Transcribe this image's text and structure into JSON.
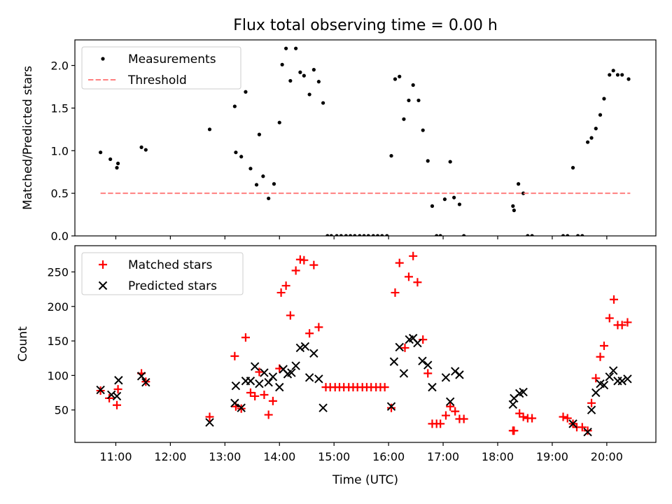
{
  "figure": {
    "title": "Flux total observing time = 0.00 h"
  },
  "chart_data": [
    {
      "type": "scatter",
      "id": "ratio",
      "title": "Flux total observing time = 0.00 h",
      "xlabel": "",
      "ylabel": "Matched/Predicted stars",
      "xlim": [
        10.25,
        20.9
      ],
      "ylim": [
        0.0,
        2.3
      ],
      "yticks": [
        0.0,
        0.5,
        1.0,
        1.5,
        2.0
      ],
      "ytick_labels": [
        "0.0",
        "0.5",
        "1.0",
        "1.5",
        "2.0"
      ],
      "legend_position": "top-left",
      "series": [
        {
          "name": "Measurements",
          "marker": "dot",
          "color": "#000000",
          "points": [
            [
              10.72,
              0.98
            ],
            [
              10.9,
              0.9
            ],
            [
              11.02,
              0.8
            ],
            [
              11.04,
              0.85
            ],
            [
              11.47,
              1.04
            ],
            [
              11.55,
              1.01
            ],
            [
              12.72,
              1.25
            ],
            [
              13.18,
              1.52
            ],
            [
              13.2,
              0.98
            ],
            [
              13.3,
              0.93
            ],
            [
              13.38,
              1.69
            ],
            [
              13.47,
              0.79
            ],
            [
              13.58,
              0.6
            ],
            [
              13.63,
              1.19
            ],
            [
              13.7,
              0.7
            ],
            [
              13.8,
              0.44
            ],
            [
              13.9,
              0.61
            ],
            [
              14.0,
              1.33
            ],
            [
              14.05,
              2.01
            ],
            [
              14.12,
              2.2
            ],
            [
              14.2,
              1.82
            ],
            [
              14.3,
              2.2
            ],
            [
              14.38,
              1.92
            ],
            [
              14.45,
              1.88
            ],
            [
              14.55,
              1.66
            ],
            [
              14.63,
              1.95
            ],
            [
              14.72,
              1.81
            ],
            [
              14.8,
              1.56
            ],
            [
              14.88,
              0.0
            ],
            [
              14.95,
              0.0
            ],
            [
              15.05,
              0.0
            ],
            [
              15.13,
              0.0
            ],
            [
              15.22,
              0.0
            ],
            [
              15.3,
              0.0
            ],
            [
              15.38,
              0.0
            ],
            [
              15.47,
              0.0
            ],
            [
              15.55,
              0.0
            ],
            [
              15.63,
              0.0
            ],
            [
              15.72,
              0.0
            ],
            [
              15.8,
              0.0
            ],
            [
              15.88,
              0.0
            ],
            [
              15.97,
              0.0
            ],
            [
              16.05,
              0.94
            ],
            [
              16.12,
              1.84
            ],
            [
              16.2,
              1.87
            ],
            [
              16.28,
              1.37
            ],
            [
              16.37,
              1.59
            ],
            [
              16.45,
              1.77
            ],
            [
              16.55,
              1.59
            ],
            [
              16.63,
              1.24
            ],
            [
              16.72,
              0.88
            ],
            [
              16.8,
              0.35
            ],
            [
              16.88,
              0.0
            ],
            [
              16.95,
              0.0
            ],
            [
              17.03,
              0.43
            ],
            [
              17.13,
              0.87
            ],
            [
              17.2,
              0.45
            ],
            [
              17.3,
              0.37
            ],
            [
              17.38,
              0.0
            ],
            [
              18.28,
              0.35
            ],
            [
              18.3,
              0.3
            ],
            [
              18.38,
              0.61
            ],
            [
              18.47,
              0.5
            ],
            [
              18.55,
              0.0
            ],
            [
              18.63,
              0.0
            ],
            [
              19.2,
              0.0
            ],
            [
              19.28,
              0.0
            ],
            [
              19.38,
              0.8
            ],
            [
              19.47,
              0.0
            ],
            [
              19.55,
              0.0
            ],
            [
              19.65,
              1.1
            ],
            [
              19.72,
              1.15
            ],
            [
              19.8,
              1.26
            ],
            [
              19.88,
              1.42
            ],
            [
              19.95,
              1.61
            ],
            [
              20.05,
              1.89
            ],
            [
              20.12,
              1.94
            ],
            [
              20.2,
              1.89
            ],
            [
              20.28,
              1.89
            ],
            [
              20.4,
              1.84
            ]
          ]
        },
        {
          "name": "Threshold",
          "marker": "dashed-line",
          "color": "#ff7f7f",
          "points": [
            [
              10.72,
              0.5
            ],
            [
              20.43,
              0.5
            ]
          ]
        }
      ]
    },
    {
      "type": "scatter",
      "id": "counts",
      "title": "",
      "xlabel": "Time (UTC)",
      "ylabel": "Count",
      "xlim": [
        10.25,
        20.9
      ],
      "ylim": [
        3,
        288
      ],
      "yticks": [
        50,
        100,
        150,
        200,
        250
      ],
      "ytick_labels": [
        "50",
        "100",
        "150",
        "200",
        "250"
      ],
      "xticks": [
        11,
        12,
        13,
        14,
        15,
        16,
        17,
        18,
        19,
        20
      ],
      "xtick_labels": [
        "11:00",
        "12:00",
        "13:00",
        "14:00",
        "15:00",
        "16:00",
        "17:00",
        "18:00",
        "19:00",
        "20:00"
      ],
      "legend_position": "top-left",
      "series": [
        {
          "name": "Matched stars",
          "marker": "plus",
          "color": "#ff0000",
          "points": [
            [
              10.72,
              78
            ],
            [
              10.88,
              67
            ],
            [
              11.02,
              57
            ],
            [
              11.04,
              80
            ],
            [
              11.47,
              103
            ],
            [
              11.55,
              91
            ],
            [
              12.72,
              40
            ],
            [
              13.18,
              128
            ],
            [
              13.2,
              55
            ],
            [
              13.3,
              52
            ],
            [
              13.38,
              155
            ],
            [
              13.47,
              75
            ],
            [
              13.55,
              70
            ],
            [
              13.63,
              105
            ],
            [
              13.72,
              72
            ],
            [
              13.8,
              43
            ],
            [
              13.88,
              63
            ],
            [
              14.0,
              110
            ],
            [
              14.03,
              220
            ],
            [
              14.12,
              230
            ],
            [
              14.2,
              187
            ],
            [
              14.3,
              252
            ],
            [
              14.38,
              268
            ],
            [
              14.45,
              267
            ],
            [
              14.55,
              161
            ],
            [
              14.63,
              260
            ],
            [
              14.72,
              170
            ],
            [
              14.85,
              83
            ],
            [
              14.93,
              83
            ],
            [
              15.02,
              83
            ],
            [
              15.1,
              83
            ],
            [
              15.18,
              83
            ],
            [
              15.27,
              83
            ],
            [
              15.35,
              83
            ],
            [
              15.43,
              83
            ],
            [
              15.52,
              83
            ],
            [
              15.6,
              83
            ],
            [
              15.68,
              83
            ],
            [
              15.77,
              83
            ],
            [
              15.85,
              83
            ],
            [
              15.93,
              83
            ],
            [
              16.05,
              53
            ],
            [
              16.12,
              220
            ],
            [
              16.2,
              263
            ],
            [
              16.3,
              140
            ],
            [
              16.37,
              243
            ],
            [
              16.45,
              273
            ],
            [
              16.53,
              235
            ],
            [
              16.63,
              152
            ],
            [
              16.72,
              103
            ],
            [
              16.8,
              30
            ],
            [
              16.88,
              30
            ],
            [
              16.95,
              30
            ],
            [
              17.05,
              42
            ],
            [
              17.13,
              55
            ],
            [
              17.22,
              48
            ],
            [
              17.3,
              37
            ],
            [
              17.38,
              37
            ],
            [
              18.28,
              20
            ],
            [
              18.3,
              20
            ],
            [
              18.4,
              45
            ],
            [
              18.47,
              40
            ],
            [
              18.55,
              38
            ],
            [
              18.63,
              38
            ],
            [
              19.2,
              40
            ],
            [
              19.28,
              38
            ],
            [
              19.38,
              30
            ],
            [
              19.45,
              25
            ],
            [
              19.55,
              25
            ],
            [
              19.65,
              20
            ],
            [
              19.72,
              60
            ],
            [
              19.8,
              96
            ],
            [
              19.88,
              127
            ],
            [
              19.95,
              143
            ],
            [
              20.05,
              183
            ],
            [
              20.13,
              210
            ],
            [
              20.2,
              173
            ],
            [
              20.28,
              173
            ],
            [
              20.38,
              177
            ]
          ]
        },
        {
          "name": "Predicted stars",
          "marker": "cross",
          "color": "#000000",
          "points": [
            [
              10.72,
              79
            ],
            [
              10.92,
              72
            ],
            [
              11.02,
              70
            ],
            [
              11.05,
              93
            ],
            [
              11.47,
              99
            ],
            [
              11.55,
              90
            ],
            [
              12.72,
              32
            ],
            [
              13.18,
              60
            ],
            [
              13.2,
              85
            ],
            [
              13.3,
              53
            ],
            [
              13.38,
              92
            ],
            [
              13.47,
              92
            ],
            [
              13.55,
              113
            ],
            [
              13.63,
              88
            ],
            [
              13.72,
              104
            ],
            [
              13.8,
              90
            ],
            [
              13.88,
              98
            ],
            [
              14.0,
              83
            ],
            [
              14.07,
              109
            ],
            [
              14.15,
              102
            ],
            [
              14.22,
              104
            ],
            [
              14.3,
              114
            ],
            [
              14.38,
              140
            ],
            [
              14.47,
              142
            ],
            [
              14.55,
              97
            ],
            [
              14.63,
              132
            ],
            [
              14.72,
              95
            ],
            [
              14.8,
              53
            ],
            [
              16.05,
              55
            ],
            [
              16.1,
              120
            ],
            [
              16.2,
              141
            ],
            [
              16.28,
              103
            ],
            [
              16.38,
              152
            ],
            [
              16.45,
              154
            ],
            [
              16.53,
              147
            ],
            [
              16.62,
              121
            ],
            [
              16.72,
              115
            ],
            [
              16.8,
              83
            ],
            [
              17.05,
              97
            ],
            [
              17.13,
              62
            ],
            [
              17.22,
              106
            ],
            [
              17.3,
              101
            ],
            [
              18.28,
              58
            ],
            [
              18.3,
              67
            ],
            [
              18.4,
              74
            ],
            [
              18.47,
              76
            ],
            [
              19.38,
              30
            ],
            [
              19.65,
              18
            ],
            [
              19.72,
              50
            ],
            [
              19.8,
              75
            ],
            [
              19.88,
              88
            ],
            [
              19.95,
              86
            ],
            [
              20.05,
              98
            ],
            [
              20.12,
              107
            ],
            [
              20.2,
              92
            ],
            [
              20.28,
              92
            ],
            [
              20.38,
              95
            ]
          ]
        }
      ]
    }
  ]
}
